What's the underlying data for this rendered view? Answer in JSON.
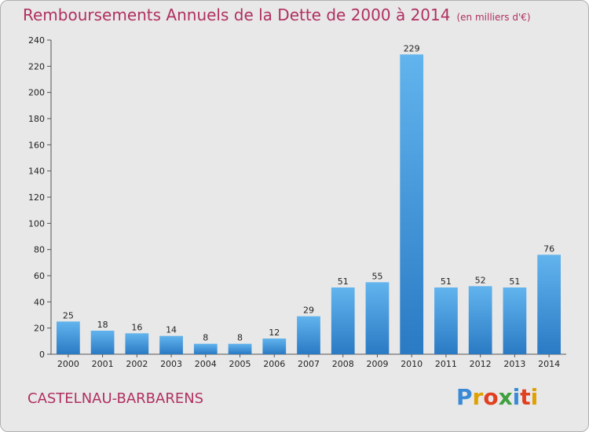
{
  "header": {
    "title": "Remboursements Annuels de la Dette de 2000 à 2014",
    "unit": "(en milliers d'€)"
  },
  "footer": {
    "commune": "CASTELNAU-BARBARENS",
    "logo_letters": [
      "P",
      "r",
      "o",
      "x",
      "i",
      "t",
      "i"
    ],
    "logo_colors": [
      "#3a8ad6",
      "#e0a000",
      "#e04020",
      "#40a040",
      "#3a8ad6",
      "#e04020",
      "#e0a000"
    ]
  },
  "colors": {
    "bar_light": "#62b4ee",
    "bar_dark": "#2a7ac4",
    "title": "#b03060"
  },
  "chart_data": {
    "type": "bar",
    "title": "Remboursements Annuels de la Dette de 2000 à 2014",
    "xlabel": "",
    "ylabel": "",
    "categories": [
      "2000",
      "2001",
      "2002",
      "2003",
      "2004",
      "2005",
      "2006",
      "2007",
      "2008",
      "2009",
      "2010",
      "2011",
      "2012",
      "2013",
      "2014"
    ],
    "values": [
      25,
      18,
      16,
      14,
      8,
      8,
      12,
      29,
      51,
      55,
      229,
      51,
      52,
      51,
      76
    ],
    "ylim": [
      0,
      240
    ],
    "yticks": [
      0,
      20,
      40,
      60,
      80,
      100,
      120,
      140,
      160,
      180,
      200,
      220,
      240
    ],
    "grid": false,
    "legend": "none"
  }
}
